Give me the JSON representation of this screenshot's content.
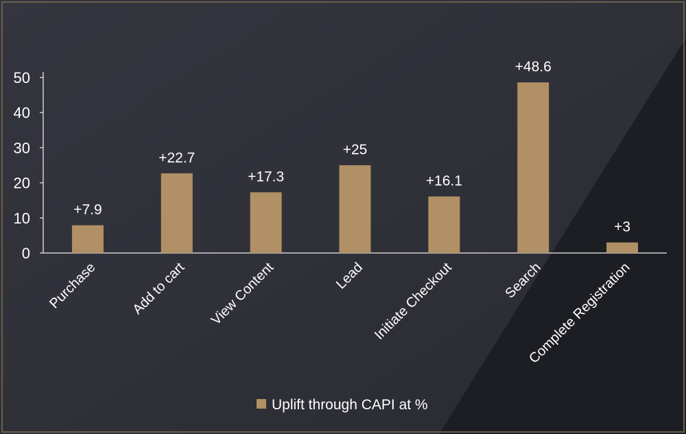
{
  "chart_data": {
    "type": "bar",
    "categories": [
      "Purchase",
      "Add to cart",
      "View Content",
      "Lead",
      "Initiate Checkout",
      "Search",
      "Complete Registration"
    ],
    "series": [
      {
        "name": "Uplift through CAPI at %",
        "values": [
          7.9,
          22.7,
          17.3,
          25,
          16.1,
          48.6,
          3
        ],
        "labels": [
          "+7.9",
          "+22.7",
          "+17.3",
          "+25",
          "+16.1",
          "+48.6",
          "+3"
        ]
      }
    ],
    "yticks": [
      "0",
      "10",
      "20",
      "30",
      "40",
      "50"
    ],
    "ylim": [
      0,
      50
    ],
    "grid": false,
    "legend_position": "bottom"
  },
  "colors": {
    "background": "#2e2f37",
    "background_dark": "#1c1d22",
    "frame": "#6b5f4c",
    "bar": "#b09064",
    "text": "#ffffff",
    "axis": "#cfcfd2"
  }
}
